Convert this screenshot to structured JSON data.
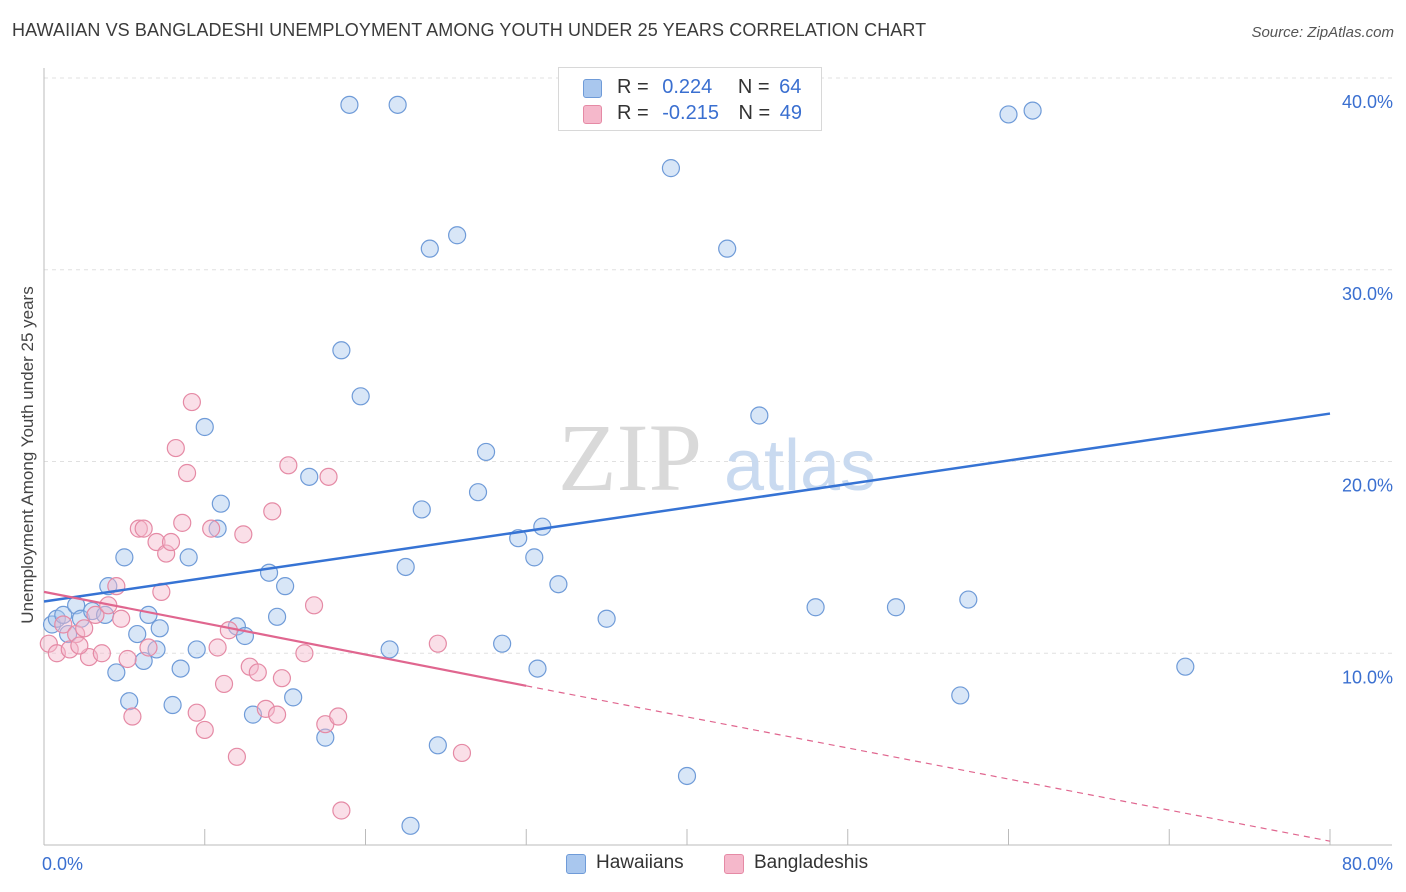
{
  "title": "HAWAIIAN VS BANGLADESHI UNEMPLOYMENT AMONG YOUTH UNDER 25 YEARS CORRELATION CHART",
  "source": "Source: ZipAtlas.com",
  "watermark": {
    "zip": "ZIP",
    "atlas": "atlas"
  },
  "stats": [
    {
      "r_label": "R =",
      "r_value": "0.224",
      "n_label": "N =",
      "n_value": "64",
      "color": "#a9c7ee"
    },
    {
      "r_label": "R =",
      "r_value": "-0.215",
      "n_label": "N =",
      "n_value": "49",
      "color": "#f5b8cb"
    }
  ],
  "legend": [
    {
      "label": "Hawaiians",
      "color": "#a9c7ee"
    },
    {
      "label": "Bangladeshis",
      "color": "#f5b8cb"
    }
  ],
  "chart_data": {
    "type": "scatter",
    "title": "HAWAIIAN VS BANGLADESHI UNEMPLOYMENT AMONG YOUTH UNDER 25 YEARS CORRELATION CHART",
    "xlabel": "",
    "ylabel": "Unemployment Among Youth under 25 years",
    "xlim": [
      0,
      80
    ],
    "ylim": [
      0,
      40
    ],
    "x_tick_labels": [
      {
        "value": 0,
        "label": "0.0%"
      },
      {
        "value": 80,
        "label": "80.0%"
      }
    ],
    "y_tick_labels": [
      {
        "value": 10,
        "label": "10.0%"
      },
      {
        "value": 20,
        "label": "20.0%"
      },
      {
        "value": 30,
        "label": "30.0%"
      },
      {
        "value": 40,
        "label": "40.0%"
      }
    ],
    "grid": true,
    "series": [
      {
        "name": "Hawaiians",
        "color": "#a9c7ee",
        "stroke": "#6f9bd8",
        "trend": {
          "x": [
            0,
            80
          ],
          "y": [
            12.7,
            22.5
          ],
          "color": "#3673d4",
          "dashed_from": null
        },
        "points": [
          [
            0.5,
            11.5
          ],
          [
            0.8,
            11.8
          ],
          [
            1.2,
            12.0
          ],
          [
            1.5,
            11.0
          ],
          [
            2.0,
            12.5
          ],
          [
            2.3,
            11.8
          ],
          [
            3.0,
            12.2
          ],
          [
            3.8,
            12.0
          ],
          [
            4.0,
            13.5
          ],
          [
            4.5,
            9.0
          ],
          [
            5.0,
            15.0
          ],
          [
            5.3,
            7.5
          ],
          [
            5.8,
            11.0
          ],
          [
            6.2,
            9.6
          ],
          [
            6.5,
            12.0
          ],
          [
            7.0,
            10.2
          ],
          [
            7.2,
            11.3
          ],
          [
            8.0,
            7.3
          ],
          [
            8.5,
            9.2
          ],
          [
            9.0,
            15.0
          ],
          [
            9.5,
            10.2
          ],
          [
            10.0,
            21.8
          ],
          [
            10.8,
            16.5
          ],
          [
            11.0,
            17.8
          ],
          [
            12.0,
            11.4
          ],
          [
            12.5,
            10.9
          ],
          [
            13.0,
            6.8
          ],
          [
            14.0,
            14.2
          ],
          [
            14.5,
            11.9
          ],
          [
            15.0,
            13.5
          ],
          [
            15.5,
            7.7
          ],
          [
            16.5,
            19.2
          ],
          [
            17.5,
            5.6
          ],
          [
            18.5,
            25.8
          ],
          [
            19.0,
            38.6
          ],
          [
            19.7,
            23.4
          ],
          [
            21.5,
            10.2
          ],
          [
            22.0,
            38.6
          ],
          [
            22.5,
            14.5
          ],
          [
            22.8,
            1.0
          ],
          [
            23.5,
            17.5
          ],
          [
            24.0,
            31.1
          ],
          [
            24.5,
            5.2
          ],
          [
            25.7,
            31.8
          ],
          [
            27.0,
            18.4
          ],
          [
            27.5,
            20.5
          ],
          [
            28.5,
            10.5
          ],
          [
            29.5,
            16.0
          ],
          [
            30.5,
            15.0
          ],
          [
            30.7,
            9.2
          ],
          [
            31.0,
            16.6
          ],
          [
            32.0,
            13.6
          ],
          [
            35.0,
            11.8
          ],
          [
            39.0,
            35.3
          ],
          [
            40.0,
            3.6
          ],
          [
            42.5,
            31.1
          ],
          [
            44.5,
            22.4
          ],
          [
            48.0,
            12.4
          ],
          [
            53.0,
            12.4
          ],
          [
            57.0,
            7.8
          ],
          [
            57.5,
            12.8
          ],
          [
            60.0,
            38.1
          ],
          [
            61.5,
            38.3
          ],
          [
            71.0,
            9.3
          ]
        ]
      },
      {
        "name": "Bangladeshis",
        "color": "#f5b8cb",
        "stroke": "#e58aa5",
        "trend": {
          "x": [
            0,
            30,
            80
          ],
          "y": [
            13.2,
            8.3,
            0.2
          ],
          "color": "#e0668f",
          "dashed_from": 30
        },
        "points": [
          [
            0.3,
            10.5
          ],
          [
            0.8,
            10.0
          ],
          [
            1.2,
            11.5
          ],
          [
            1.6,
            10.2
          ],
          [
            2.0,
            11.0
          ],
          [
            2.5,
            11.3
          ],
          [
            2.8,
            9.8
          ],
          [
            3.2,
            12.0
          ],
          [
            3.6,
            10.0
          ],
          [
            4.0,
            12.5
          ],
          [
            4.5,
            13.5
          ],
          [
            4.8,
            11.8
          ],
          [
            5.2,
            9.7
          ],
          [
            5.5,
            6.7
          ],
          [
            5.9,
            16.5
          ],
          [
            6.2,
            16.5
          ],
          [
            6.5,
            10.3
          ],
          [
            7.0,
            15.8
          ],
          [
            7.3,
            13.2
          ],
          [
            7.6,
            15.2
          ],
          [
            7.9,
            15.8
          ],
          [
            8.2,
            20.7
          ],
          [
            8.6,
            16.8
          ],
          [
            8.9,
            19.4
          ],
          [
            9.2,
            23.1
          ],
          [
            9.5,
            6.9
          ],
          [
            10.0,
            6.0
          ],
          [
            10.4,
            16.5
          ],
          [
            10.8,
            10.3
          ],
          [
            11.2,
            8.4
          ],
          [
            11.5,
            11.2
          ],
          [
            12.0,
            4.6
          ],
          [
            12.4,
            16.2
          ],
          [
            12.8,
            9.3
          ],
          [
            13.3,
            9.0
          ],
          [
            13.8,
            7.1
          ],
          [
            14.2,
            17.4
          ],
          [
            14.5,
            6.8
          ],
          [
            14.8,
            8.7
          ],
          [
            15.2,
            19.8
          ],
          [
            16.2,
            10.0
          ],
          [
            16.8,
            12.5
          ],
          [
            17.5,
            6.3
          ],
          [
            17.7,
            19.2
          ],
          [
            18.3,
            6.7
          ],
          [
            18.5,
            1.8
          ],
          [
            24.5,
            10.5
          ],
          [
            26.0,
            4.8
          ],
          [
            2.2,
            10.4
          ]
        ]
      }
    ]
  }
}
